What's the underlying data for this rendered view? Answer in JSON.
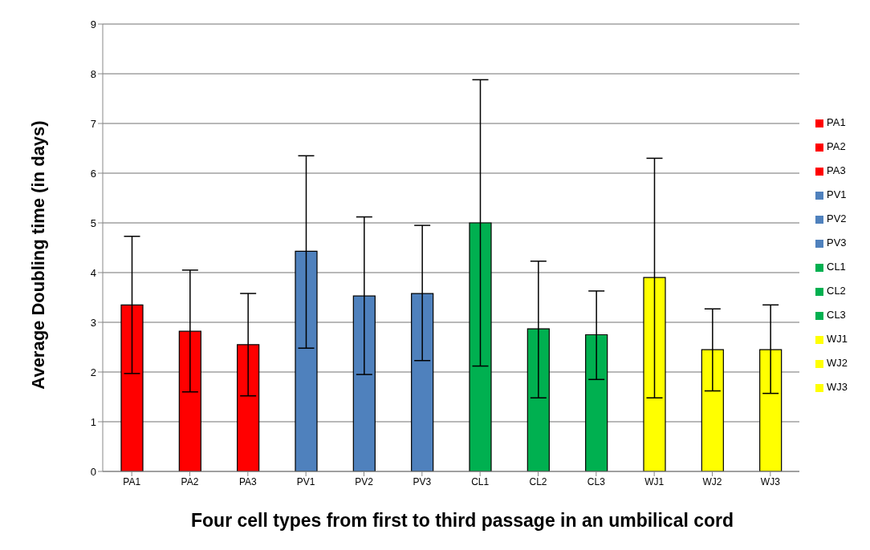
{
  "chart_data": {
    "type": "bar",
    "stacked": true,
    "xlabel": "Four cell types from first to third passage in an umbilical cord",
    "ylabel": "Average Doubling time (in days)",
    "categories": [
      "PA1",
      "PA2",
      "PA3",
      "PV1",
      "PV2",
      "PV3",
      "CL1",
      "CL2",
      "CL3",
      "WJ1",
      "WJ2",
      "WJ3"
    ],
    "series": [
      {
        "name": "PA1",
        "color": "#ff0000",
        "values": [
          3.35,
          null,
          null,
          null,
          null,
          null,
          null,
          null,
          null,
          null,
          null,
          null
        ],
        "errors": [
          [
            1.97,
            4.73
          ],
          null,
          null,
          null,
          null,
          null,
          null,
          null,
          null,
          null,
          null,
          null
        ]
      },
      {
        "name": "PA2",
        "color": "#ff0000",
        "values": [
          null,
          2.82,
          null,
          null,
          null,
          null,
          null,
          null,
          null,
          null,
          null,
          null
        ],
        "errors": [
          null,
          [
            1.6,
            4.05
          ],
          null,
          null,
          null,
          null,
          null,
          null,
          null,
          null,
          null,
          null
        ]
      },
      {
        "name": "PA3",
        "color": "#ff0000",
        "values": [
          null,
          null,
          2.55,
          null,
          null,
          null,
          null,
          null,
          null,
          null,
          null,
          null
        ],
        "errors": [
          null,
          null,
          [
            1.52,
            3.58
          ],
          null,
          null,
          null,
          null,
          null,
          null,
          null,
          null,
          null
        ]
      },
      {
        "name": "PV1",
        "color": "#4f81bd",
        "values": [
          null,
          null,
          null,
          4.43,
          null,
          null,
          null,
          null,
          null,
          null,
          null,
          null
        ],
        "errors": [
          null,
          null,
          null,
          [
            2.48,
            6.35
          ],
          null,
          null,
          null,
          null,
          null,
          null,
          null,
          null
        ]
      },
      {
        "name": "PV2",
        "color": "#4f81bd",
        "values": [
          null,
          null,
          null,
          null,
          3.53,
          null,
          null,
          null,
          null,
          null,
          null,
          null
        ],
        "errors": [
          null,
          null,
          null,
          null,
          [
            1.95,
            5.12
          ],
          null,
          null,
          null,
          null,
          null,
          null,
          null
        ]
      },
      {
        "name": "PV3",
        "color": "#4f81bd",
        "values": [
          null,
          null,
          null,
          null,
          null,
          3.58,
          null,
          null,
          null,
          null,
          null,
          null
        ],
        "errors": [
          null,
          null,
          null,
          null,
          null,
          [
            2.23,
            4.95
          ],
          null,
          null,
          null,
          null,
          null,
          null
        ]
      },
      {
        "name": "CL1",
        "color": "#00b050",
        "values": [
          null,
          null,
          null,
          null,
          null,
          null,
          5.0,
          null,
          null,
          null,
          null,
          null
        ],
        "errors": [
          null,
          null,
          null,
          null,
          null,
          null,
          [
            2.12,
            7.88
          ],
          null,
          null,
          null,
          null,
          null
        ]
      },
      {
        "name": "CL2",
        "color": "#00b050",
        "values": [
          null,
          null,
          null,
          null,
          null,
          null,
          null,
          2.87,
          null,
          null,
          null,
          null
        ],
        "errors": [
          null,
          null,
          null,
          null,
          null,
          null,
          null,
          [
            1.48,
            4.23
          ],
          null,
          null,
          null,
          null
        ]
      },
      {
        "name": "CL3",
        "color": "#00b050",
        "values": [
          null,
          null,
          null,
          null,
          null,
          null,
          null,
          null,
          2.75,
          null,
          null,
          null
        ],
        "errors": [
          null,
          null,
          null,
          null,
          null,
          null,
          null,
          null,
          [
            1.85,
            3.63
          ],
          null,
          null,
          null
        ]
      },
      {
        "name": "WJ1",
        "color": "#ffff00",
        "values": [
          null,
          null,
          null,
          null,
          null,
          null,
          null,
          null,
          null,
          3.9,
          null,
          null
        ],
        "errors": [
          null,
          null,
          null,
          null,
          null,
          null,
          null,
          null,
          null,
          [
            1.48,
            6.3
          ],
          null,
          null
        ]
      },
      {
        "name": "WJ2",
        "color": "#ffff00",
        "values": [
          null,
          null,
          null,
          null,
          null,
          null,
          null,
          null,
          null,
          null,
          2.45,
          null
        ],
        "errors": [
          null,
          null,
          null,
          null,
          null,
          null,
          null,
          null,
          null,
          null,
          [
            1.62,
            3.27
          ],
          null
        ]
      },
      {
        "name": "WJ3",
        "color": "#ffff00",
        "values": [
          null,
          null,
          null,
          null,
          null,
          null,
          null,
          null,
          null,
          null,
          null,
          2.45
        ],
        "errors": [
          null,
          null,
          null,
          null,
          null,
          null,
          null,
          null,
          null,
          null,
          null,
          [
            1.57,
            3.35
          ]
        ]
      }
    ],
    "ylim": [
      0,
      9
    ],
    "yticks": [
      0,
      1,
      2,
      3,
      4,
      5,
      6,
      7,
      8,
      9
    ],
    "grid": "y",
    "legend": "right"
  }
}
